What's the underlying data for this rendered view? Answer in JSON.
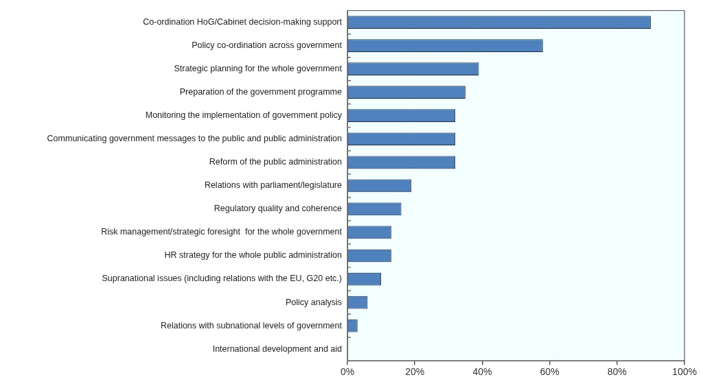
{
  "chart_data": {
    "type": "bar",
    "orientation": "horizontal",
    "categories": [
      "Co-ordination HoG/Cabinet decision-making support",
      "Policy co-ordination across government",
      "Strategic planning for the whole government",
      "Preparation of the government programme",
      "Monitoring the implementation of government policy",
      "Communicating government messages to the public and public administration",
      "Reform of the public administration",
      "Relations with parliament/legislature",
      "Regulatory quality and coherence",
      "Risk management/strategic foresight  for the whole government",
      "HR strategy for the whole public administration",
      "Supranational issues (including relations with the EU, G20 etc.)",
      "Policy analysis",
      "Relations with subnational levels of government",
      "International development and aid"
    ],
    "values": [
      90,
      58,
      39,
      35,
      32,
      32,
      32,
      19,
      16,
      13,
      13,
      10,
      6,
      3,
      0
    ],
    "color": "#4f81bd",
    "xlim": [
      0,
      100
    ],
    "xticks": [
      {
        "value": 0,
        "label": "0%"
      },
      {
        "value": 20,
        "label": "20%"
      },
      {
        "value": 40,
        "label": "40%"
      },
      {
        "value": 60,
        "label": "60%"
      },
      {
        "value": 80,
        "label": "80%"
      },
      {
        "value": 100,
        "label": "100%"
      }
    ],
    "grid": "x",
    "legend": false
  }
}
